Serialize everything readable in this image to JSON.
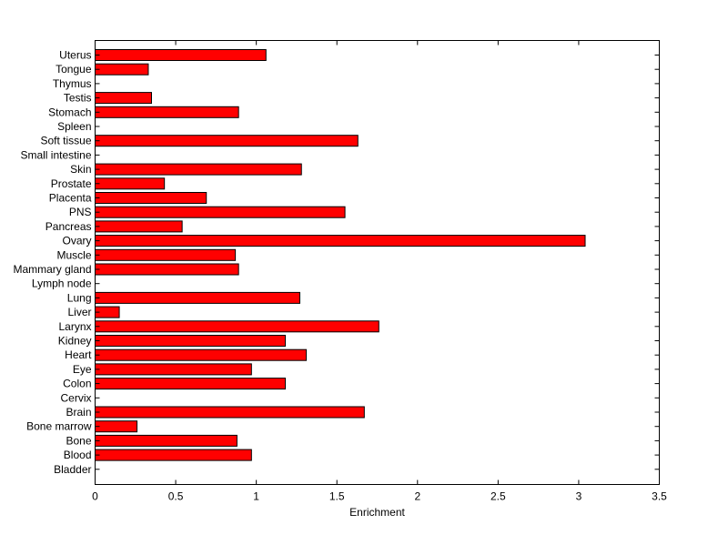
{
  "chart_data": {
    "type": "bar",
    "orientation": "horizontal",
    "xlabel": "Enrichment",
    "xlim": [
      0,
      3.5
    ],
    "xticks": [
      0,
      0.5,
      1,
      1.5,
      2,
      2.5,
      3,
      3.5
    ],
    "xtick_labels": [
      "0",
      "0.5",
      "1",
      "1.5",
      "2",
      "2.5",
      "3",
      "3.5"
    ],
    "grid": false,
    "bar_color": "#ff0000",
    "categories": [
      "Uterus",
      "Tongue",
      "Thymus",
      "Testis",
      "Stomach",
      "Spleen",
      "Soft tissue",
      "Small intestine",
      "Skin",
      "Prostate",
      "Placenta",
      "PNS",
      "Pancreas",
      "Ovary",
      "Muscle",
      "Mammary gland",
      "Lymph node",
      "Lung",
      "Liver",
      "Larynx",
      "Kidney",
      "Heart",
      "Eye",
      "Colon",
      "Cervix",
      "Brain",
      "Bone marrow",
      "Bone",
      "Blood",
      "Bladder"
    ],
    "values": [
      1.06,
      0.33,
      0,
      0.35,
      0.89,
      0,
      1.63,
      0,
      1.28,
      0.43,
      0.69,
      1.55,
      0.54,
      3.04,
      0.87,
      0.89,
      0,
      1.27,
      0.15,
      1.76,
      1.18,
      1.31,
      0.97,
      1.18,
      0,
      1.67,
      0.26,
      0.88,
      0.97,
      0
    ]
  }
}
